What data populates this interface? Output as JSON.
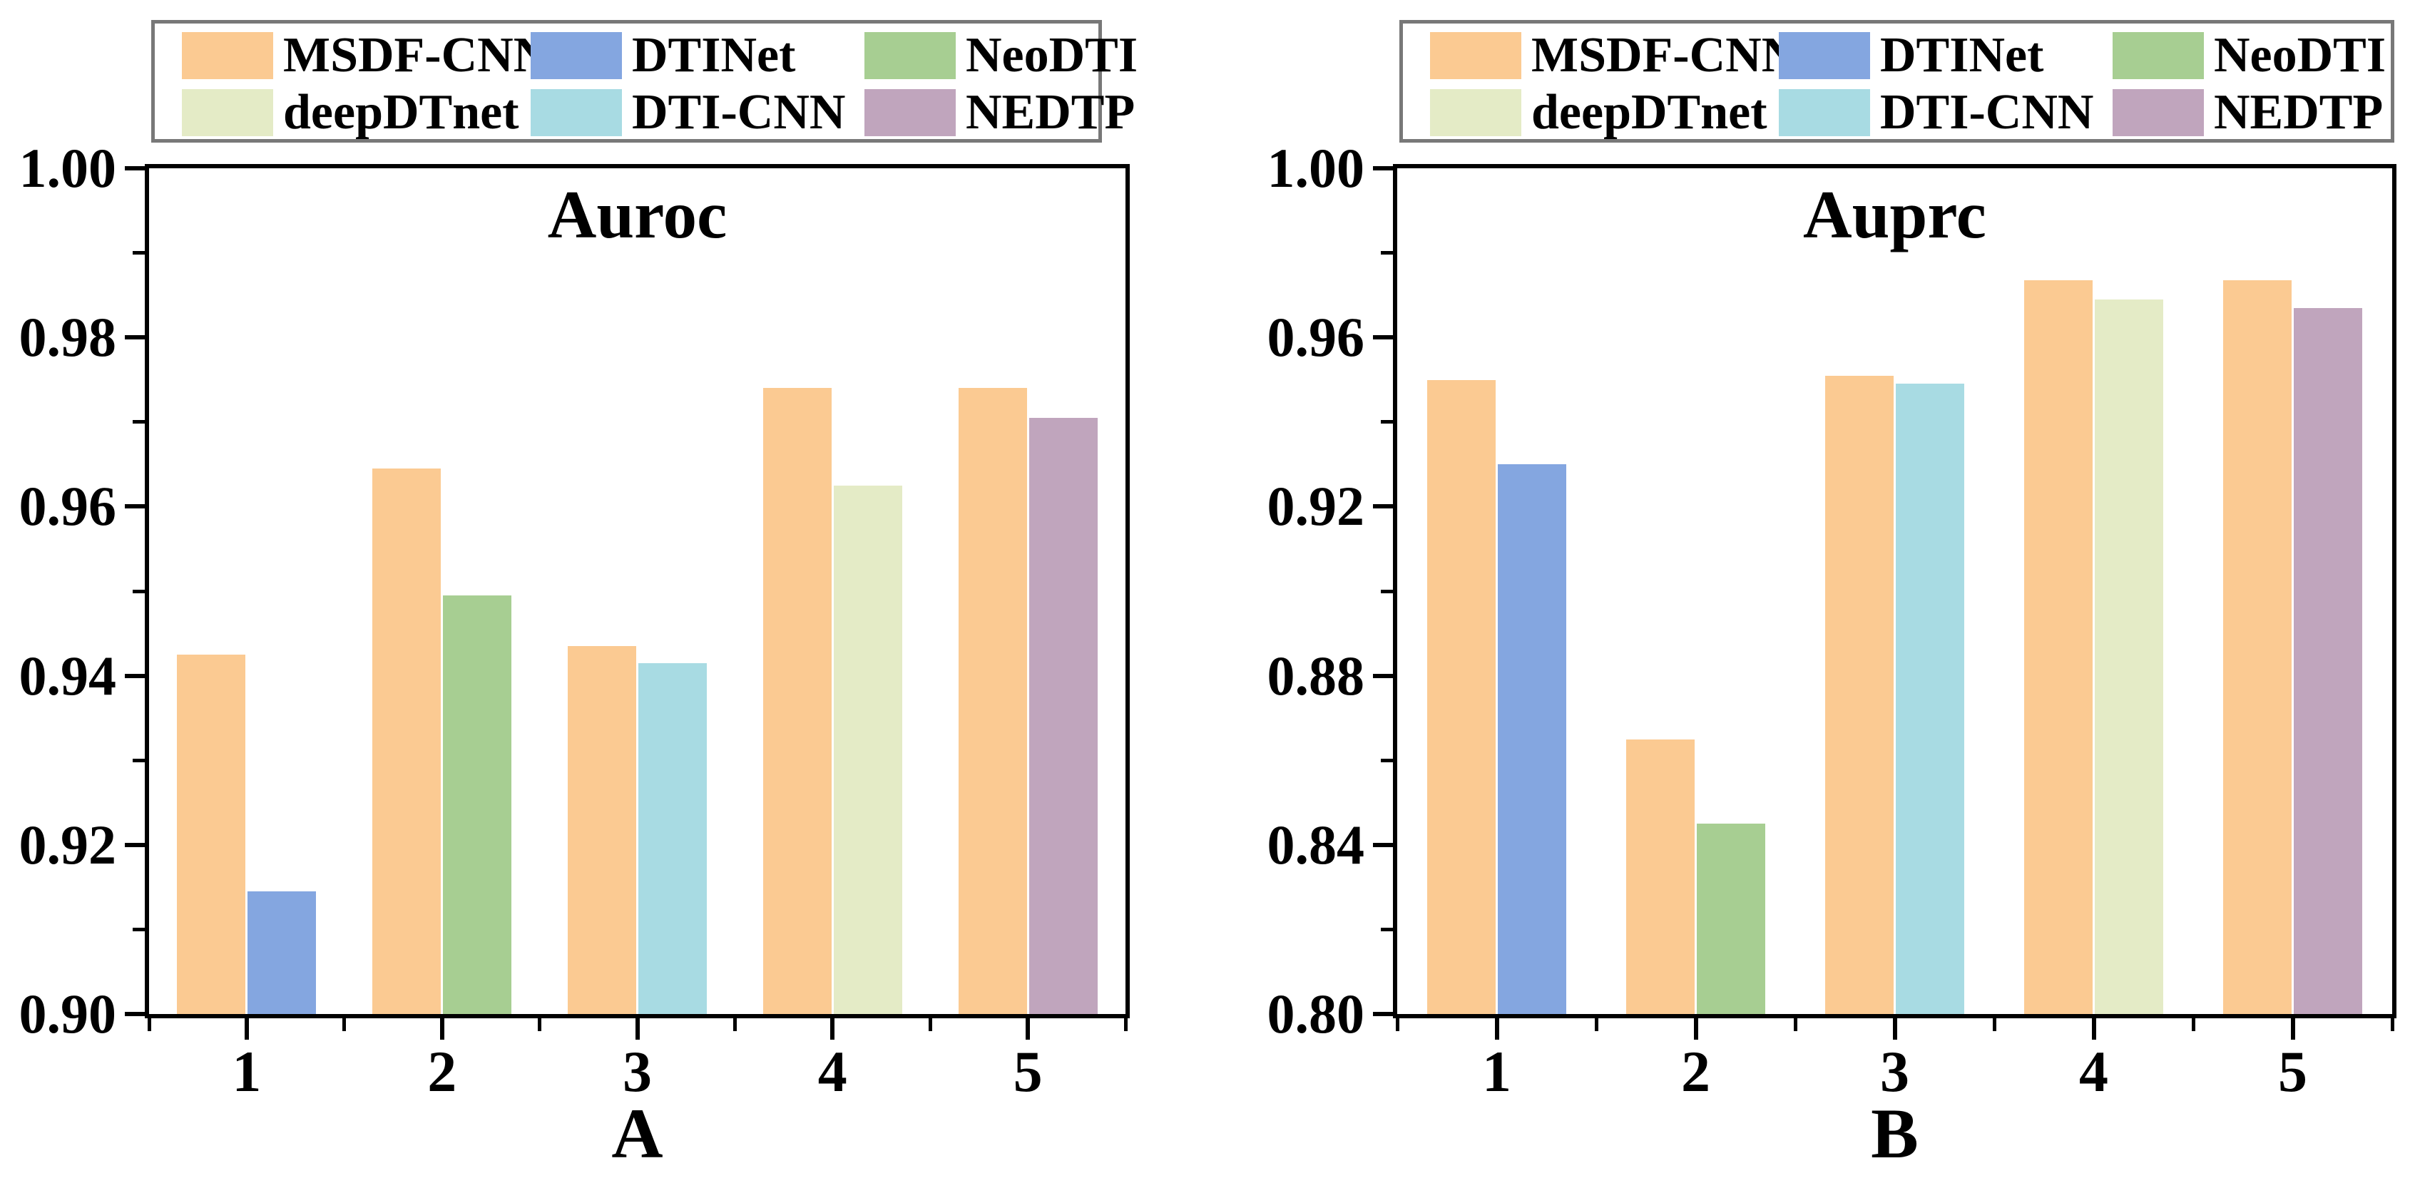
{
  "colors": {
    "background": "#FFFFFF",
    "axis": "#000000",
    "text": "#000000",
    "legend_border": "#787878"
  },
  "chart_data": [
    {
      "type": "bar",
      "panel_label": "A",
      "title": "Auroc",
      "categories": [
        "1",
        "2",
        "3",
        "4",
        "5"
      ],
      "series": [
        {
          "name": "MSDF-CNN",
          "color": "#FBCA92",
          "values": [
            0.9425,
            0.9645,
            0.9435,
            0.974,
            0.974
          ]
        },
        {
          "name": "DTINet",
          "color": "#84A6E0",
          "values": [
            0.9145,
            null,
            null,
            null,
            null
          ]
        },
        {
          "name": "NeoDTI",
          "color": "#A7CE92",
          "values": [
            null,
            0.9495,
            null,
            null,
            null
          ]
        },
        {
          "name": "DTI-CNN",
          "color": "#A8DBE3",
          "values": [
            null,
            null,
            0.9415,
            null,
            null
          ]
        },
        {
          "name": "deepDTnet",
          "color": "#E4EBC6",
          "values": [
            null,
            null,
            null,
            0.9625,
            null
          ]
        },
        {
          "name": "NEDTP",
          "color": "#C0A5BD",
          "values": [
            null,
            null,
            null,
            null,
            0.9705
          ]
        }
      ],
      "ylim": [
        0.9,
        1.0
      ],
      "yticks": [
        "1.00",
        "0.98",
        "0.96",
        "0.94",
        "0.92",
        "0.90"
      ],
      "xlabel": "",
      "ylabel": "",
      "legend_rows": [
        [
          "MSDF-CNN",
          "DTINet",
          "NeoDTI"
        ],
        [
          "deepDTnet",
          "DTI-CNN",
          "NEDTP"
        ]
      ],
      "legend_position": "top",
      "grid": false
    },
    {
      "type": "bar",
      "panel_label": "B",
      "title": "Auprc",
      "categories": [
        "1",
        "2",
        "3",
        "4",
        "5"
      ],
      "series": [
        {
          "name": "MSDF-CNN",
          "color": "#FBCA92",
          "values": [
            0.95,
            0.865,
            0.951,
            0.9735,
            0.9735
          ]
        },
        {
          "name": "DTINet",
          "color": "#84A6E0",
          "values": [
            0.93,
            null,
            null,
            null,
            null
          ]
        },
        {
          "name": "NeoDTI",
          "color": "#A7CE92",
          "values": [
            null,
            0.845,
            null,
            null,
            null
          ]
        },
        {
          "name": "DTI-CNN",
          "color": "#A8DBE3",
          "values": [
            null,
            null,
            0.949,
            null,
            null
          ]
        },
        {
          "name": "deepDTnet",
          "color": "#E4EBC6",
          "values": [
            null,
            null,
            null,
            0.969,
            null
          ]
        },
        {
          "name": "NEDTP",
          "color": "#C0A5BD",
          "values": [
            null,
            null,
            null,
            null,
            0.967
          ]
        }
      ],
      "ylim": [
        0.8,
        1.0
      ],
      "yticks": [
        "1.00",
        "0.96",
        "0.92",
        "0.88",
        "0.84",
        "0.80"
      ],
      "xlabel": "",
      "ylabel": "",
      "legend_rows": [
        [
          "MSDF-CNN",
          "DTINet",
          "NeoDTI"
        ],
        [
          "deepDTnet",
          "DTI-CNN",
          "NEDTP"
        ]
      ],
      "legend_position": "top",
      "grid": false
    }
  ]
}
